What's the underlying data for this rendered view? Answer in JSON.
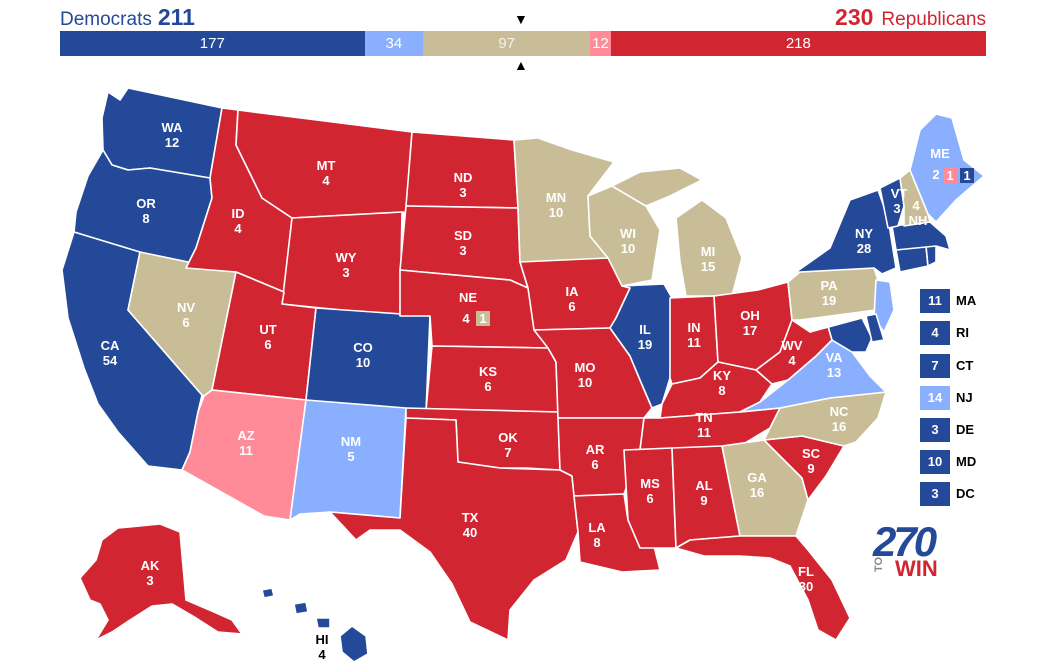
{
  "header": {
    "dem_label": "Democrats",
    "dem_total": "211",
    "rep_total": "230",
    "rep_label": "Republicans",
    "marker_top": "▼",
    "marker_bottom": "▲"
  },
  "colors": {
    "safe_dem": "#244999",
    "lean_dem": "#8aafff",
    "tossup": "#c9bd98",
    "lean_rep": "#ff8b98",
    "safe_rep": "#d22532"
  },
  "bar": [
    {
      "label": "177",
      "value": 177,
      "color": "#244999"
    },
    {
      "label": "34",
      "value": 34,
      "color": "#8aafff"
    },
    {
      "label": "97",
      "value": 97,
      "color": "#c9bd98"
    },
    {
      "label": "12",
      "value": 12,
      "color": "#ff8b98"
    },
    {
      "label": "218",
      "value": 218,
      "color": "#d22532"
    }
  ],
  "states": [
    {
      "abbr": "WA",
      "ev": "12",
      "rating": "safe_dem"
    },
    {
      "abbr": "OR",
      "ev": "8",
      "rating": "safe_dem"
    },
    {
      "abbr": "CA",
      "ev": "54",
      "rating": "safe_dem"
    },
    {
      "abbr": "NV",
      "ev": "6",
      "rating": "tossup"
    },
    {
      "abbr": "ID",
      "ev": "4",
      "rating": "safe_rep"
    },
    {
      "abbr": "MT",
      "ev": "4",
      "rating": "safe_rep"
    },
    {
      "abbr": "WY",
      "ev": "3",
      "rating": "safe_rep"
    },
    {
      "abbr": "UT",
      "ev": "6",
      "rating": "safe_rep"
    },
    {
      "abbr": "AZ",
      "ev": "11",
      "rating": "lean_rep"
    },
    {
      "abbr": "CO",
      "ev": "10",
      "rating": "safe_dem"
    },
    {
      "abbr": "NM",
      "ev": "5",
      "rating": "lean_dem"
    },
    {
      "abbr": "ND",
      "ev": "3",
      "rating": "safe_rep"
    },
    {
      "abbr": "SD",
      "ev": "3",
      "rating": "safe_rep"
    },
    {
      "abbr": "NE",
      "ev": "4",
      "rating": "safe_rep",
      "district": "1"
    },
    {
      "abbr": "KS",
      "ev": "6",
      "rating": "safe_rep"
    },
    {
      "abbr": "OK",
      "ev": "7",
      "rating": "safe_rep"
    },
    {
      "abbr": "TX",
      "ev": "40",
      "rating": "safe_rep"
    },
    {
      "abbr": "MN",
      "ev": "10",
      "rating": "tossup"
    },
    {
      "abbr": "IA",
      "ev": "6",
      "rating": "safe_rep"
    },
    {
      "abbr": "MO",
      "ev": "10",
      "rating": "safe_rep"
    },
    {
      "abbr": "AR",
      "ev": "6",
      "rating": "safe_rep"
    },
    {
      "abbr": "LA",
      "ev": "8",
      "rating": "safe_rep"
    },
    {
      "abbr": "WI",
      "ev": "10",
      "rating": "tossup"
    },
    {
      "abbr": "IL",
      "ev": "19",
      "rating": "safe_dem"
    },
    {
      "abbr": "MI",
      "ev": "15",
      "rating": "tossup"
    },
    {
      "abbr": "IN",
      "ev": "11",
      "rating": "safe_rep"
    },
    {
      "abbr": "OH",
      "ev": "17",
      "rating": "safe_rep"
    },
    {
      "abbr": "KY",
      "ev": "8",
      "rating": "safe_rep"
    },
    {
      "abbr": "TN",
      "ev": "11",
      "rating": "safe_rep"
    },
    {
      "abbr": "MS",
      "ev": "6",
      "rating": "safe_rep"
    },
    {
      "abbr": "AL",
      "ev": "9",
      "rating": "safe_rep"
    },
    {
      "abbr": "GA",
      "ev": "16",
      "rating": "tossup"
    },
    {
      "abbr": "FL",
      "ev": "30",
      "rating": "safe_rep"
    },
    {
      "abbr": "SC",
      "ev": "9",
      "rating": "safe_rep"
    },
    {
      "abbr": "NC",
      "ev": "16",
      "rating": "tossup"
    },
    {
      "abbr": "VA",
      "ev": "13",
      "rating": "lean_dem"
    },
    {
      "abbr": "WV",
      "ev": "4",
      "rating": "safe_rep"
    },
    {
      "abbr": "PA",
      "ev": "19",
      "rating": "tossup"
    },
    {
      "abbr": "NY",
      "ev": "28",
      "rating": "safe_dem"
    },
    {
      "abbr": "VT",
      "ev": "3",
      "rating": "safe_dem"
    },
    {
      "abbr": "NH",
      "ev": "4",
      "rating": "tossup"
    },
    {
      "abbr": "ME",
      "ev": "2",
      "rating": "lean_dem",
      "district_rep": "1",
      "district_dem": "1"
    },
    {
      "abbr": "AK",
      "ev": "3",
      "rating": "safe_rep"
    },
    {
      "abbr": "HI",
      "ev": "4",
      "rating": "safe_dem"
    }
  ],
  "small_states": [
    {
      "ev": "11",
      "abbr": "MA",
      "rating": "safe_dem"
    },
    {
      "ev": "4",
      "abbr": "RI",
      "rating": "safe_dem"
    },
    {
      "ev": "7",
      "abbr": "CT",
      "rating": "safe_dem"
    },
    {
      "ev": "14",
      "abbr": "NJ",
      "rating": "lean_dem"
    },
    {
      "ev": "3",
      "abbr": "DE",
      "rating": "safe_dem"
    },
    {
      "ev": "10",
      "abbr": "MD",
      "rating": "safe_dem"
    },
    {
      "ev": "3",
      "abbr": "DC",
      "rating": "safe_dem"
    }
  ],
  "logo": {
    "number": "270",
    "to": "TO",
    "win": "WIN"
  }
}
